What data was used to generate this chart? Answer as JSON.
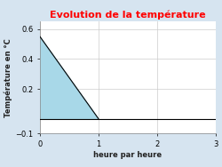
{
  "title": "Evolution de la température",
  "title_color": "#ff0000",
  "xlabel": "heure par heure",
  "ylabel": "Température en °C",
  "background_color": "#d6e4f0",
  "plot_bg_color": "#ffffff",
  "xlim": [
    0,
    3
  ],
  "ylim": [
    -0.1,
    0.65
  ],
  "xticks": [
    0,
    1,
    2,
    3
  ],
  "yticks": [
    -0.1,
    0.2,
    0.4,
    0.6
  ],
  "line_x": [
    0,
    1
  ],
  "line_y": [
    0.55,
    0.0
  ],
  "fill_color": "#a8d8e8",
  "zero_line_y": 0.0,
  "grid_color": "#cccccc",
  "title_fontsize": 8,
  "label_fontsize": 6,
  "tick_fontsize": 6
}
